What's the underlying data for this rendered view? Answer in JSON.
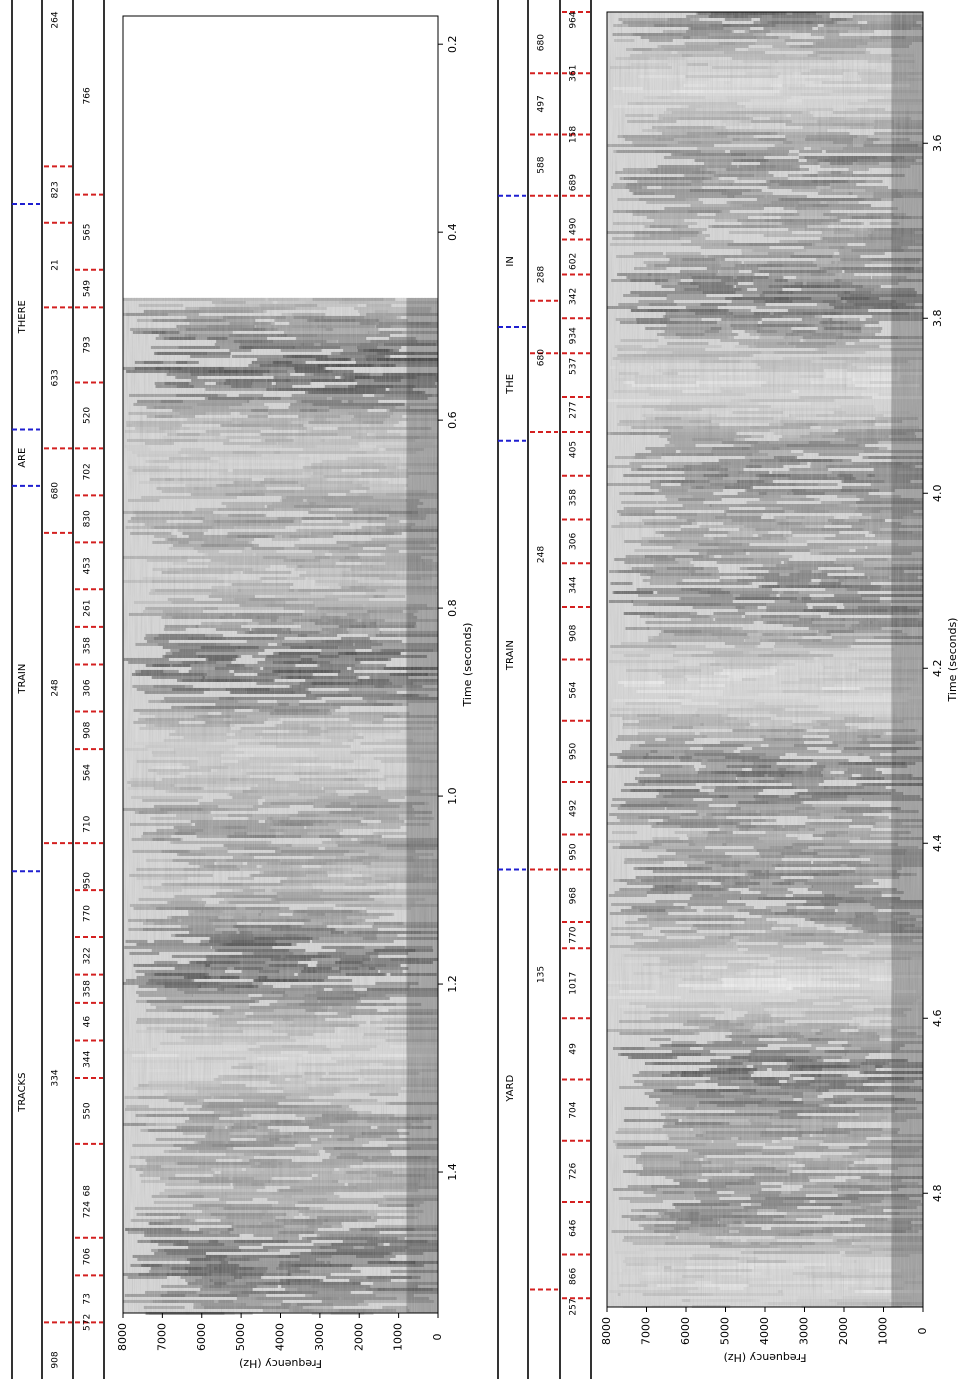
{
  "chart_data": [
    {
      "type": "heatmap",
      "title": "",
      "xlabel": "Time (seconds)",
      "ylabel": "Frequency (Hz)",
      "xlim": [
        0.17,
        1.55
      ],
      "ylim": [
        0,
        8000
      ],
      "x_ticks": [
        0.2,
        0.4,
        0.6,
        0.8,
        1.0,
        1.2,
        1.4
      ],
      "y_ticks": [
        0,
        1000,
        2000,
        3000,
        4000,
        5000,
        6000,
        7000,
        8000
      ],
      "silence_until": 0.47,
      "words": [
        {
          "label": "THERE",
          "start": 0.37,
          "end": 0.61
        },
        {
          "label": "ARE",
          "start": 0.61,
          "end": 0.67
        },
        {
          "label": "TRAIN",
          "start": 0.67,
          "end": 1.08
        },
        {
          "label": "TRACKS",
          "start": 1.08,
          "end": 1.55
        }
      ],
      "mid_tier": {
        "boundaries": [
          0.33,
          0.39,
          0.48,
          0.63,
          0.72,
          1.05,
          1.56
        ],
        "labels": [
          {
            "label": "264",
            "t": 0.17
          },
          {
            "label": "823",
            "t": 0.355
          },
          {
            "label": "21",
            "t": 0.435
          },
          {
            "label": "633",
            "t": 0.555
          },
          {
            "label": "680",
            "t": 0.675
          },
          {
            "label": "248",
            "t": 0.885
          },
          {
            "label": "334",
            "t": 1.3
          },
          {
            "label": "908",
            "t": 1.62
          }
        ]
      },
      "low_tier": {
        "boundaries": [
          0.15,
          0.36,
          0.44,
          0.48,
          0.56,
          0.63,
          0.68,
          0.73,
          0.78,
          0.82,
          0.86,
          0.91,
          0.95,
          1.05,
          1.1,
          1.15,
          1.19,
          1.22,
          1.26,
          1.3,
          1.37,
          1.47,
          1.51,
          1.56
        ],
        "labels": [
          {
            "label": "766",
            "t": 0.255
          },
          {
            "label": "565",
            "t": 0.4
          },
          {
            "label": "549",
            "t": 0.46
          },
          {
            "label": "793",
            "t": 0.52
          },
          {
            "label": "520",
            "t": 0.595
          },
          {
            "label": "702",
            "t": 0.655
          },
          {
            "label": "830",
            "t": 0.705
          },
          {
            "label": "453",
            "t": 0.755
          },
          {
            "label": "261",
            "t": 0.8
          },
          {
            "label": "358",
            "t": 0.84
          },
          {
            "label": "306",
            "t": 0.885
          },
          {
            "label": "908",
            "t": 0.93
          },
          {
            "label": "564",
            "t": 0.975
          },
          {
            "label": "710",
            "t": 1.03
          },
          {
            "label": "950",
            "t": 1.09
          },
          {
            "label": "770",
            "t": 1.125
          },
          {
            "label": "322",
            "t": 1.17
          },
          {
            "label": "358",
            "t": 1.205
          },
          {
            "label": "46",
            "t": 1.24
          },
          {
            "label": "344",
            "t": 1.28
          },
          {
            "label": "550",
            "t": 1.335
          },
          {
            "label": "68",
            "t": 1.42
          },
          {
            "label": "706",
            "t": 1.49
          },
          {
            "label": "73",
            "t": 1.535
          },
          {
            "label": "724",
            "t": 1.44
          },
          {
            "label": "572",
            "t": 1.56
          }
        ]
      }
    },
    {
      "type": "heatmap",
      "title": "",
      "xlabel": "Time (seconds)",
      "ylabel": "Frequency (Hz)",
      "xlim": [
        3.45,
        4.93
      ],
      "ylim": [
        0,
        8000
      ],
      "x_ticks": [
        3.6,
        3.8,
        4.0,
        4.2,
        4.4,
        4.6,
        4.8
      ],
      "y_ticks": [
        0,
        1000,
        2000,
        3000,
        4000,
        5000,
        6000,
        7000,
        8000
      ],
      "silence_until": 3.45,
      "words": [
        {
          "label": "IN",
          "start": 3.66,
          "end": 3.81
        },
        {
          "label": "THE",
          "start": 3.81,
          "end": 3.94
        },
        {
          "label": "TRAIN",
          "start": 3.94,
          "end": 4.43
        },
        {
          "label": "YARD",
          "start": 4.43,
          "end": 4.93
        }
      ],
      "mid_tier": {
        "boundaries": [
          3.52,
          3.59,
          3.66,
          3.78,
          3.84,
          3.93,
          4.43,
          4.91
        ],
        "labels": [
          {
            "label": "680",
            "t": 3.485
          },
          {
            "label": "497",
            "t": 3.555
          },
          {
            "label": "588",
            "t": 3.625
          },
          {
            "label": "288",
            "t": 3.75
          },
          {
            "label": "680",
            "t": 3.845
          },
          {
            "label": "248",
            "t": 4.07
          },
          {
            "label": "135",
            "t": 4.55
          }
        ]
      },
      "low_tier": {
        "boundaries": [
          3.45,
          3.52,
          3.59,
          3.66,
          3.71,
          3.75,
          3.8,
          3.84,
          3.89,
          3.93,
          3.98,
          4.03,
          4.08,
          4.13,
          4.19,
          4.26,
          4.33,
          4.39,
          4.43,
          4.49,
          4.52,
          4.6,
          4.67,
          4.74,
          4.81,
          4.87,
          4.92
        ],
        "labels": [
          {
            "label": "964",
            "t": 3.445
          },
          {
            "label": "361",
            "t": 3.52
          },
          {
            "label": "158",
            "t": 3.59
          },
          {
            "label": "689",
            "t": 3.645
          },
          {
            "label": "490",
            "t": 3.695
          },
          {
            "label": "602",
            "t": 3.735
          },
          {
            "label": "342",
            "t": 3.775
          },
          {
            "label": "934",
            "t": 3.82
          },
          {
            "label": "537",
            "t": 3.855
          },
          {
            "label": "277",
            "t": 3.905
          },
          {
            "label": "405",
            "t": 3.95
          },
          {
            "label": "358",
            "t": 4.005
          },
          {
            "label": "306",
            "t": 4.055
          },
          {
            "label": "344",
            "t": 4.105
          },
          {
            "label": "908",
            "t": 4.16
          },
          {
            "label": "564",
            "t": 4.225
          },
          {
            "label": "950",
            "t": 4.295
          },
          {
            "label": "492",
            "t": 4.36
          },
          {
            "label": "950",
            "t": 4.41
          },
          {
            "label": "968",
            "t": 4.46
          },
          {
            "label": "770",
            "t": 4.505
          },
          {
            "label": "1017",
            "t": 4.56
          },
          {
            "label": "49",
            "t": 4.635
          },
          {
            "label": "704",
            "t": 4.705
          },
          {
            "label": "726",
            "t": 4.775
          },
          {
            "label": "646",
            "t": 4.84
          },
          {
            "label": "866",
            "t": 4.895
          },
          {
            "label": "257",
            "t": 4.93
          }
        ]
      }
    }
  ]
}
